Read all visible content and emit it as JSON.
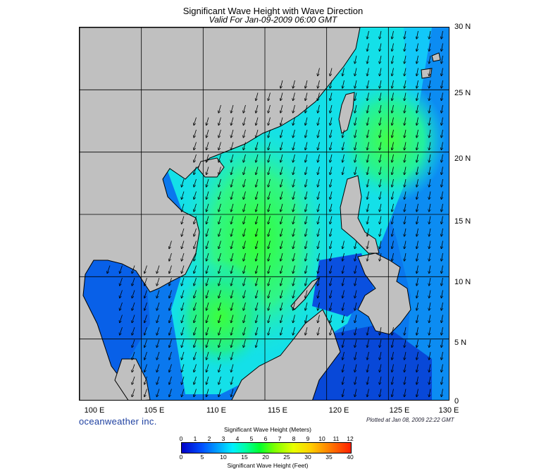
{
  "title": "Significant Wave Height with Wave Direction",
  "subtitle": "Valid For Jan-09-2009 06:00 GMT",
  "latitude_labels": [
    "30 N",
    "25 N",
    "20 N",
    "15 N",
    "10 N",
    "5 N",
    "0"
  ],
  "longitude_labels": [
    "100 E",
    "105 E",
    "110 E",
    "115 E",
    "120 E",
    "125 E",
    "130 E"
  ],
  "brand": "oceanweather inc.",
  "plotted_note": "Plotted at Jan 08, 2009 22:22 GMT",
  "colorbar": {
    "title_meters": "Significant Wave Height (Meters)",
    "title_feet": "Significant Wave Height (Feet)",
    "meter_ticks": [
      "0",
      "1",
      "2",
      "3",
      "4",
      "5",
      "6",
      "7",
      "8",
      "9",
      "10",
      "11",
      "12"
    ],
    "feet_ticks": [
      "0",
      "5",
      "10",
      "15",
      "20",
      "25",
      "30",
      "35",
      "40"
    ]
  },
  "map": {
    "region": "South China Sea",
    "lon_range": [
      100,
      130
    ],
    "lat_range": [
      0,
      30
    ],
    "land_color": "#c0c0c0",
    "arrow_color": "#000000",
    "wave_direction_general": "toward south-southwest",
    "peak_wave_height_m": 5
  }
}
